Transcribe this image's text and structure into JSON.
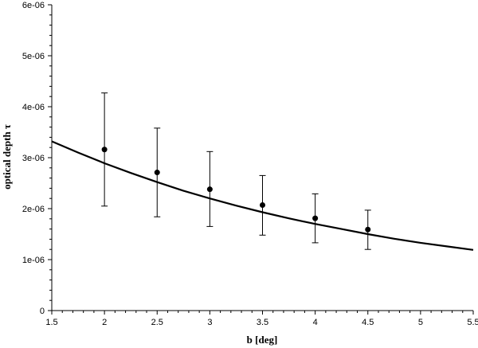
{
  "chart_data": {
    "type": "scatter",
    "xlabel": "b [deg]",
    "ylabel": "optical depth τ",
    "xlim": [
      1.5,
      5.5
    ],
    "ylim": [
      0,
      6e-06
    ],
    "grid": false,
    "x_ticks": [
      1.5,
      2,
      2.5,
      3,
      3.5,
      4,
      4.5,
      5,
      5.5
    ],
    "x_tick_labels": [
      "1.5",
      "2",
      "2.5",
      "3",
      "3.5",
      "4",
      "4.5",
      "5",
      "5.5"
    ],
    "y_ticks": [
      0,
      1e-06,
      2e-06,
      3e-06,
      4e-06,
      5e-06,
      6e-06
    ],
    "y_tick_labels": [
      "0",
      "1e-06",
      "2e-06",
      "3e-06",
      "4e-06",
      "5e-06",
      "6e-06"
    ],
    "series": [
      {
        "kind": "points-with-errorbars",
        "x": [
          2,
          2.5,
          3,
          3.5,
          4,
          4.5
        ],
        "y": [
          3.16e-06,
          2.71e-06,
          2.38e-06,
          2.07e-06,
          1.81e-06,
          1.59e-06
        ],
        "y_upper": [
          4.27e-06,
          3.58e-06,
          3.12e-06,
          2.65e-06,
          2.29e-06,
          1.97e-06
        ],
        "y_lower": [
          2.05e-06,
          1.84e-06,
          1.65e-06,
          1.48e-06,
          1.33e-06,
          1.2e-06
        ]
      },
      {
        "kind": "line",
        "x": [
          1.5,
          1.75,
          2,
          2.25,
          2.5,
          2.75,
          3,
          3.25,
          3.5,
          3.75,
          4,
          4.25,
          4.5,
          4.75,
          5,
          5.25,
          5.5
        ],
        "y": [
          3.32e-06,
          3.1e-06,
          2.89e-06,
          2.7e-06,
          2.52e-06,
          2.35e-06,
          2.2e-06,
          2.06e-06,
          1.93e-06,
          1.81e-06,
          1.7e-06,
          1.6e-06,
          1.5e-06,
          1.41e-06,
          1.33e-06,
          1.26e-06,
          1.19e-06
        ]
      }
    ]
  }
}
